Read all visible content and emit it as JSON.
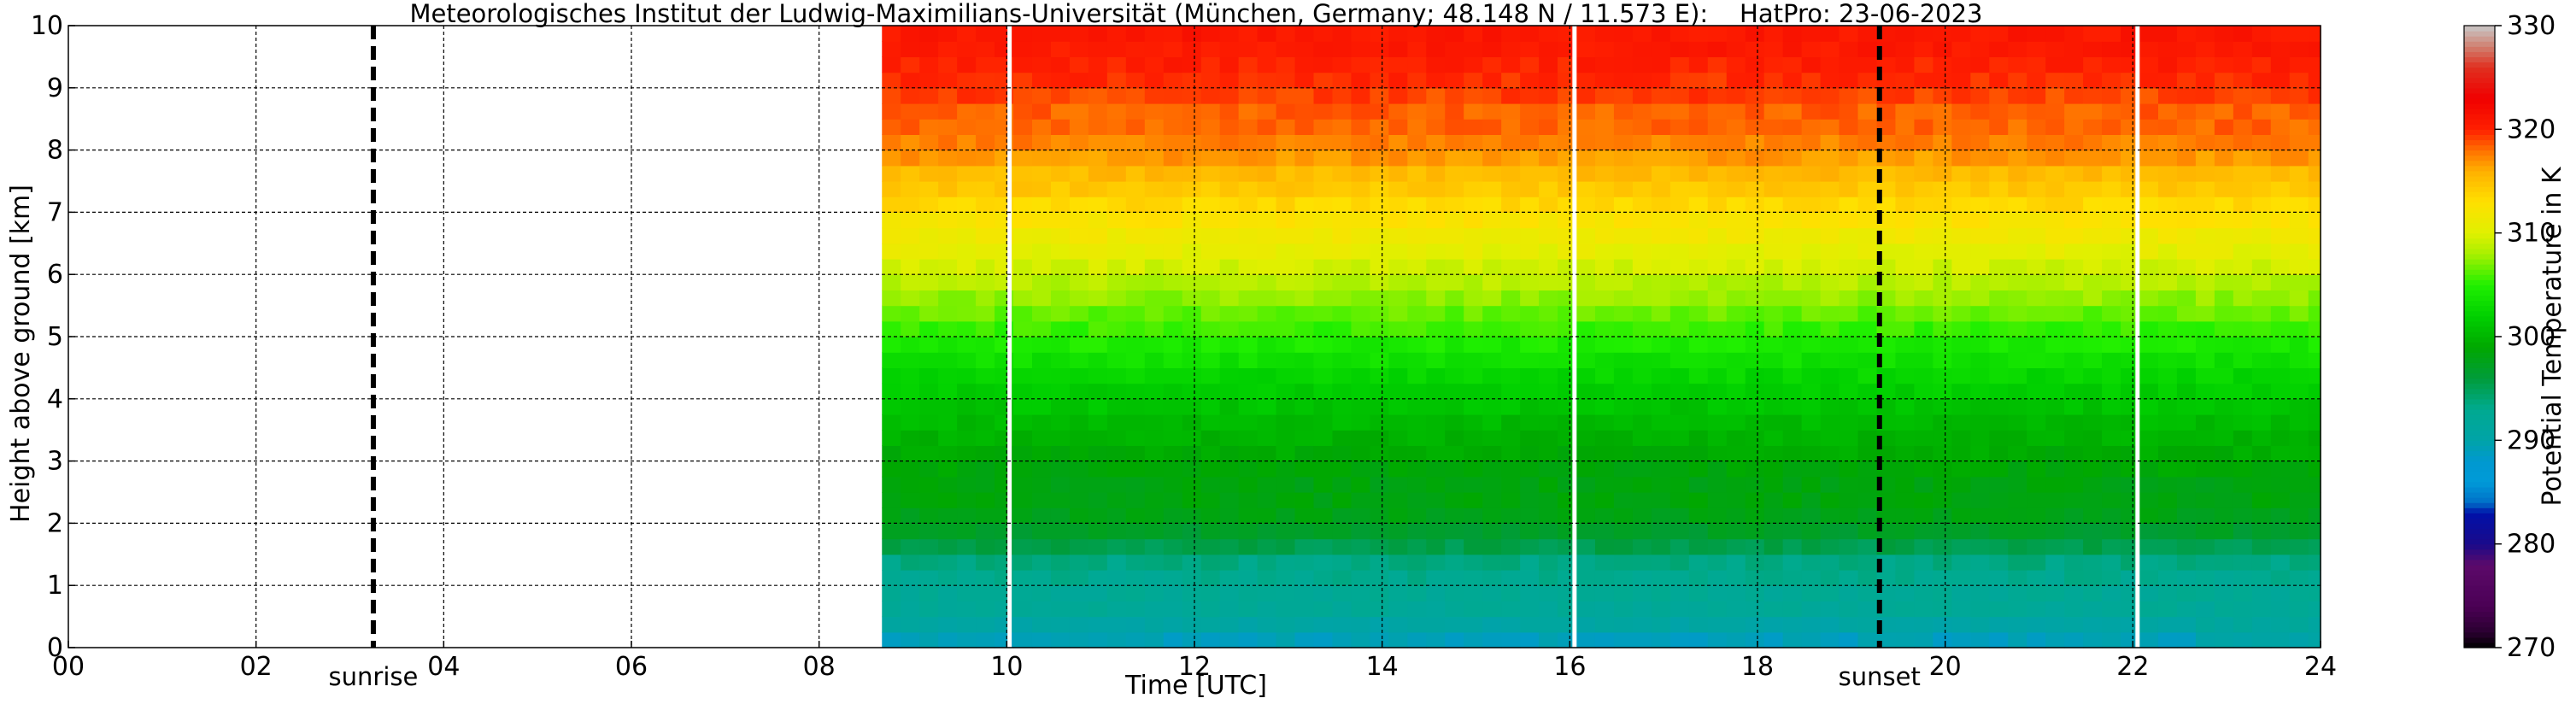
{
  "chart_data": {
    "type": "heatmap",
    "title": "Meteorologisches Institut der Ludwig-Maximilians-Universität (München, Germany; 48.148 N / 11.573 E):    HatPro: 23-06-2023",
    "xlabel": "Time [UTC]",
    "ylabel": "Height above ground [km]",
    "colorbar_label": "Potential Temperature in K",
    "xlim": [
      0,
      24
    ],
    "ylim": [
      0,
      10
    ],
    "x_ticks": [
      0,
      2,
      4,
      6,
      8,
      10,
      12,
      14,
      16,
      18,
      20,
      22,
      24
    ],
    "x_tick_labels": [
      "00",
      "02",
      "04",
      "06",
      "08",
      "10",
      "12",
      "14",
      "16",
      "18",
      "20",
      "22",
      "24"
    ],
    "y_ticks": [
      0,
      1,
      2,
      3,
      4,
      5,
      6,
      7,
      8,
      9,
      10
    ],
    "y_tick_labels": [
      "0",
      "1",
      "2",
      "3",
      "4",
      "5",
      "6",
      "7",
      "8",
      "9",
      "10"
    ],
    "colorbar_range": [
      270,
      330
    ],
    "colorbar_ticks": [
      270,
      280,
      290,
      300,
      310,
      320,
      330
    ],
    "colorbar_tick_labels": [
      "270",
      "280",
      "290",
      "300",
      "310",
      "320",
      "330"
    ],
    "grid": true,
    "data_start_hour": 8.67,
    "data_end_hour": 24,
    "data_gaps_hours": [
      10.03,
      16.05,
      22.05
    ],
    "reference_lines": [
      {
        "label": "sunrise",
        "x": 3.25
      },
      {
        "label": "sunset",
        "x": 19.3
      }
    ],
    "profile": {
      "heights_km": [
        0,
        0.25,
        0.5,
        1.0,
        1.5,
        2.0,
        2.5,
        3.0,
        3.5,
        4.0,
        4.5,
        5.0,
        5.5,
        6.0,
        6.5,
        7.0,
        7.5,
        8.0,
        8.5,
        9.0,
        9.5,
        10.0
      ],
      "potential_temperature_K": [
        289,
        291,
        292,
        292.5,
        294,
        297,
        298,
        299,
        300,
        301.5,
        303,
        305,
        307,
        309,
        311,
        313,
        315,
        316.5,
        318,
        319.5,
        320.5,
        321
      ]
    },
    "colormap": [
      {
        "value": 270,
        "color": "#000000"
      },
      {
        "value": 271.5,
        "color": "#2a0030"
      },
      {
        "value": 274,
        "color": "#4b0055"
      },
      {
        "value": 278,
        "color": "#5c0a6a"
      },
      {
        "value": 280,
        "color": "#1a0a8a"
      },
      {
        "value": 283,
        "color": "#0010a8"
      },
      {
        "value": 284,
        "color": "#0070c8"
      },
      {
        "value": 286,
        "color": "#009ad8"
      },
      {
        "value": 288,
        "color": "#0099d0"
      },
      {
        "value": 290,
        "color": "#00a3a8"
      },
      {
        "value": 293,
        "color": "#00aa90"
      },
      {
        "value": 296,
        "color": "#009c3a"
      },
      {
        "value": 299,
        "color": "#00a800"
      },
      {
        "value": 302,
        "color": "#00d000"
      },
      {
        "value": 305,
        "color": "#20f000"
      },
      {
        "value": 308,
        "color": "#a8f000"
      },
      {
        "value": 310,
        "color": "#e0f000"
      },
      {
        "value": 313,
        "color": "#ffe000"
      },
      {
        "value": 316,
        "color": "#ffb000"
      },
      {
        "value": 318,
        "color": "#ff7000"
      },
      {
        "value": 320,
        "color": "#ff2000"
      },
      {
        "value": 323,
        "color": "#f00000"
      },
      {
        "value": 326,
        "color": "#e03020"
      },
      {
        "value": 328,
        "color": "#d08070"
      },
      {
        "value": 330,
        "color": "#c8c8c8"
      }
    ]
  }
}
